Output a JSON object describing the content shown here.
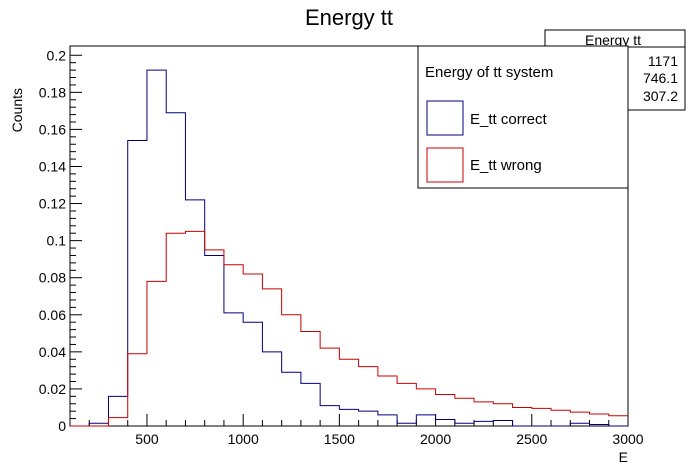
{
  "chart_data": {
    "type": "histogram",
    "title": "Energy tt",
    "xlabel": "E",
    "ylabel": "Counts",
    "xlim": [
      100,
      3000
    ],
    "ylim": [
      0,
      0.205
    ],
    "x_ticks": [
      500,
      1000,
      1500,
      2000,
      2500,
      3000
    ],
    "y_ticks": [
      0,
      0.02,
      0.04,
      0.06,
      0.08,
      0.1,
      0.12,
      0.14,
      0.16,
      0.18,
      0.2
    ],
    "y_tick_labels": [
      "0",
      "0.02",
      "0.04",
      "0.06",
      "0.08",
      "0.1",
      "0.12",
      "0.14",
      "0.16",
      "0.18",
      "0.2"
    ],
    "bin_edges": [
      100,
      200,
      300,
      400,
      500,
      600,
      700,
      800,
      900,
      1000,
      1100,
      1200,
      1300,
      1400,
      1500,
      1600,
      1700,
      1800,
      1900,
      2000,
      2100,
      2200,
      2300,
      2400,
      2500,
      2600,
      2700,
      2800,
      2900,
      3000
    ],
    "series": [
      {
        "name": "E_tt correct",
        "color": "#00007f",
        "values": [
          0,
          0.0015,
          0.016,
          0.154,
          0.192,
          0.169,
          0.122,
          0.092,
          0.061,
          0.056,
          0.04,
          0.029,
          0.023,
          0.011,
          0.009,
          0.008,
          0.006,
          0.0015,
          0.006,
          0.0035,
          0.0015,
          0.0025,
          0.003,
          0,
          0,
          0,
          0.0015,
          0.0008,
          0
        ]
      },
      {
        "name": "E_tt wrong",
        "color": "#cc0000",
        "values": [
          0,
          0,
          0.0045,
          0.039,
          0.078,
          0.104,
          0.105,
          0.095,
          0.087,
          0.082,
          0.074,
          0.06,
          0.051,
          0.042,
          0.036,
          0.032,
          0.027,
          0.023,
          0.02,
          0.017,
          0.015,
          0.013,
          0.012,
          0.01,
          0.0095,
          0.0085,
          0.0075,
          0.0065,
          0.0055
        ]
      }
    ],
    "legend": {
      "title": "Energy of tt system",
      "position": "top-right"
    },
    "stats_box": {
      "title": "Energy tt",
      "values": [
        "1171",
        "746.1",
        "307.2"
      ]
    }
  }
}
